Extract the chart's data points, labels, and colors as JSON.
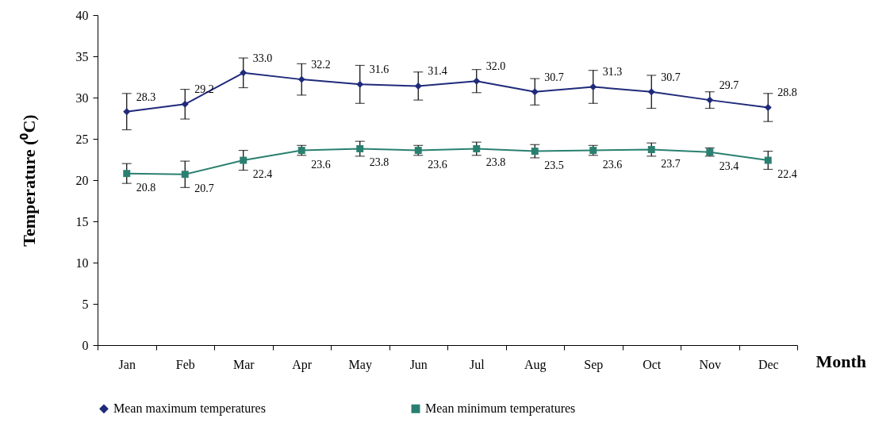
{
  "chart_data": {
    "type": "line",
    "xlabel": "Month",
    "ylabel": "Temperature (⁰C)",
    "categories": [
      "Jan",
      "Feb",
      "Mar",
      "Apr",
      "May",
      "Jun",
      "Jul",
      "Aug",
      "Sep",
      "Oct",
      "Nov",
      "Dec"
    ],
    "series": [
      {
        "name": "Mean maximum temperatures",
        "color": "#1f2a7a",
        "marker": "diamond",
        "values": [
          28.3,
          29.2,
          33.0,
          32.2,
          31.6,
          31.4,
          32.0,
          30.7,
          31.3,
          30.7,
          29.7,
          28.8
        ],
        "errors": [
          2.2,
          1.8,
          1.8,
          1.9,
          2.3,
          1.7,
          1.4,
          1.6,
          2.0,
          2.0,
          1.0,
          1.7
        ],
        "value_labels": [
          "28.3",
          "29.2",
          "33.0",
          "32.2",
          "31.6",
          "31.4",
          "32.0",
          "30.7",
          "31.3",
          "30.7",
          "29.7",
          "28.8"
        ]
      },
      {
        "name": "Mean minimum temperatures",
        "color": "#2a8070",
        "marker": "square",
        "values": [
          20.8,
          20.7,
          22.4,
          23.6,
          23.8,
          23.6,
          23.8,
          23.5,
          23.6,
          23.7,
          23.4,
          22.4
        ],
        "errors": [
          1.2,
          1.6,
          1.2,
          0.6,
          0.9,
          0.6,
          0.8,
          0.8,
          0.6,
          0.8,
          0.5,
          1.1
        ],
        "value_labels": [
          "20.8",
          "20.7",
          "22.4",
          "23.6",
          "23.8",
          "23.6",
          "23.8",
          "23.5",
          "23.6",
          "23.7",
          "23.4",
          "22.4"
        ]
      }
    ],
    "ylim": [
      0,
      40
    ],
    "yticks": [
      0,
      5,
      10,
      15,
      20,
      25,
      30,
      35,
      40
    ],
    "grid": false,
    "legend": "bottom"
  }
}
